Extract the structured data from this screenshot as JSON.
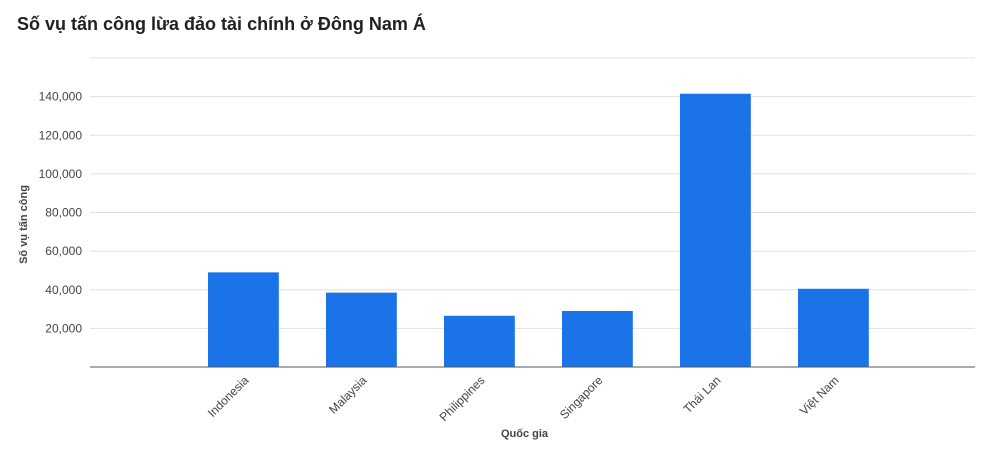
{
  "chart_data": {
    "type": "bar",
    "title": "Số vụ tấn công lừa đảo tài chính ở Đông Nam Á",
    "xlabel": "Quốc gia",
    "ylabel": "Số vụ tấn công",
    "categories": [
      "Indonesia",
      "Malaysia",
      "Philippines",
      "Singapore",
      "Thái Lan",
      "Việt Nam"
    ],
    "values": [
      49000,
      38500,
      26500,
      29000,
      141500,
      40500
    ],
    "ylim": [
      0,
      160000
    ],
    "yticks": [
      20000,
      40000,
      60000,
      80000,
      100000,
      120000,
      140000
    ],
    "ytick_labels": [
      "20,000",
      "40,000",
      "60,000",
      "80,000",
      "100,000",
      "120,000",
      "140,000"
    ],
    "grid": true,
    "legend": "none",
    "bar_color": "#1a73e8",
    "grid_color": "#e0e0e0",
    "axis_color": "#555555"
  }
}
